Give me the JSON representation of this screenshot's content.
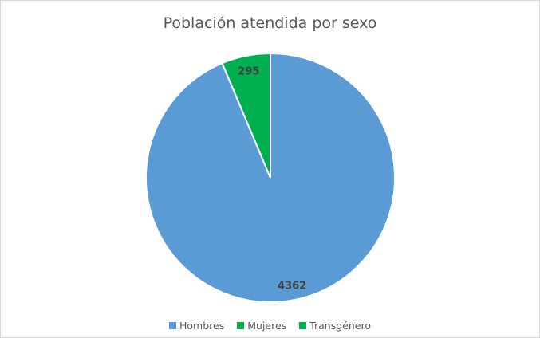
{
  "chart_data": {
    "type": "pie",
    "title": "Población atendida por sexo",
    "categories": [
      "Hombres",
      "Mujeres",
      "Transgénero"
    ],
    "values": [
      4362,
      295,
      0
    ],
    "data_labels": [
      "4362",
      "295",
      ""
    ],
    "colors": [
      "#5b9bd5",
      "#00b050",
      "#00b050"
    ],
    "legend_position": "bottom"
  }
}
